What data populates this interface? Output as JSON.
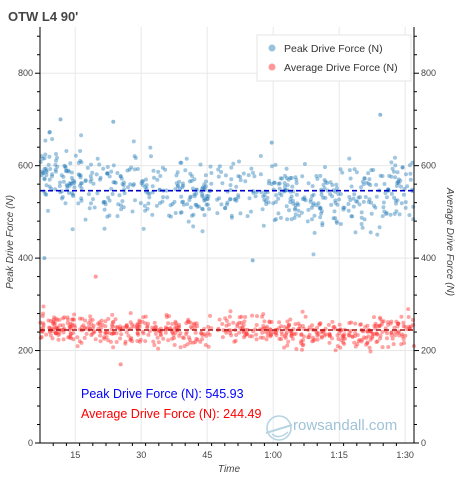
{
  "chart_data": {
    "type": "scatter",
    "title": "OTW L4 90'",
    "xlabel": "Time",
    "ylabel": "Peak Drive Force (N)",
    "y2label": "Average Drive Force (N)",
    "xlim": [
      420,
      5520
    ],
    "ylim": [
      0,
      900
    ],
    "x_ticks": [
      {
        "value": 900,
        "label": "15"
      },
      {
        "value": 1800,
        "label": "30"
      },
      {
        "value": 2700,
        "label": "45"
      },
      {
        "value": 3600,
        "label": "1:00"
      },
      {
        "value": 4500,
        "label": "1:15"
      },
      {
        "value": 5400,
        "label": "1:30"
      }
    ],
    "y_ticks": [
      0,
      200,
      400,
      600,
      800
    ],
    "grid": true,
    "legend_position": "top-right",
    "series": [
      {
        "name": "Peak Drive Force (N)",
        "color": "#1f77b4",
        "mean": 545.93,
        "mean_line_color": "#0000cc",
        "envelope": [
          [
            420,
            600
          ],
          [
            700,
            575
          ],
          [
            1000,
            560
          ],
          [
            1300,
            545
          ],
          [
            1600,
            545
          ],
          [
            2000,
            550
          ],
          [
            2400,
            545
          ],
          [
            2700,
            530
          ],
          [
            2900,
            545
          ],
          [
            3200,
            545
          ],
          [
            3600,
            545
          ],
          [
            3900,
            535
          ],
          [
            4200,
            520
          ],
          [
            4500,
            525
          ],
          [
            4800,
            530
          ],
          [
            5100,
            535
          ],
          [
            5400,
            545
          ],
          [
            5520,
            550
          ]
        ],
        "spread": 40,
        "outliers": [
          [
            700,
            700
          ],
          [
            5060,
            710
          ],
          [
            1420,
            695
          ],
          [
            3580,
            650
          ],
          [
            480,
            400
          ],
          [
            3320,
            395
          ]
        ]
      },
      {
        "name": "Average Drive Force (N)",
        "color": "#ff3333",
        "mean": 244.49,
        "mean_line_color": "#aa1111",
        "envelope": [
          [
            420,
            260
          ],
          [
            700,
            250
          ],
          [
            1000,
            248
          ],
          [
            1300,
            245
          ],
          [
            1600,
            245
          ],
          [
            2000,
            245
          ],
          [
            2400,
            243
          ],
          [
            2700,
            240
          ],
          [
            2900,
            245
          ],
          [
            3200,
            243
          ],
          [
            3600,
            242
          ],
          [
            3900,
            240
          ],
          [
            4200,
            235
          ],
          [
            4500,
            235
          ],
          [
            4800,
            237
          ],
          [
            5100,
            240
          ],
          [
            5400,
            245
          ],
          [
            5520,
            250
          ]
        ],
        "spread": 18,
        "outliers": [
          [
            1180,
            360
          ],
          [
            1520,
            170
          ]
        ]
      }
    ],
    "annotations": [
      {
        "text": "Peak Drive Force (N): 545.93",
        "color": "#0000ff"
      },
      {
        "text": "Average Drive Force (N): 244.49",
        "color": "#ff0000"
      }
    ],
    "watermark": "rowsandall.com"
  }
}
